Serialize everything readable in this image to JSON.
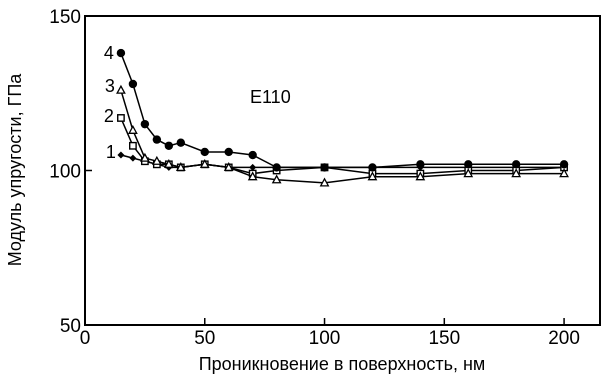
{
  "chart_data": {
    "type": "line",
    "annotation": "E110",
    "xlabel": "Проникновение в поверхность, нм",
    "ylabel": "Модуль упругости, ГПа",
    "xlim": [
      0,
      215
    ],
    "ylim": [
      50,
      150
    ],
    "xticks": [
      0,
      50,
      100,
      150,
      200
    ],
    "yticks": [
      50,
      100,
      150
    ],
    "grid": false,
    "series": [
      {
        "name": "1",
        "marker": "diamond",
        "x": [
          15,
          20,
          25,
          30,
          35,
          40,
          50,
          60,
          70,
          80,
          100,
          120,
          140,
          160,
          180,
          200
        ],
        "y": [
          105,
          104,
          103,
          102,
          101,
          101,
          102,
          101,
          101,
          101,
          101,
          101,
          101,
          101,
          101,
          101
        ]
      },
      {
        "name": "2",
        "marker": "open-square",
        "x": [
          15,
          20,
          25,
          30,
          35,
          40,
          50,
          60,
          70,
          80,
          100,
          120,
          140,
          160,
          180,
          200
        ],
        "y": [
          117,
          108,
          103,
          102,
          102,
          101,
          102,
          101,
          99,
          100,
          101,
          99,
          99,
          100,
          100,
          101
        ]
      },
      {
        "name": "3",
        "marker": "open-triangle",
        "x": [
          15,
          20,
          25,
          30,
          35,
          40,
          50,
          60,
          70,
          80,
          100,
          120,
          140,
          160,
          180,
          200
        ],
        "y": [
          126,
          113,
          104,
          103,
          102,
          101,
          102,
          101,
          98,
          97,
          96,
          98,
          98,
          99,
          99,
          99
        ]
      },
      {
        "name": "4",
        "marker": "filled-circle",
        "x": [
          15,
          20,
          25,
          30,
          35,
          40,
          50,
          60,
          70,
          80,
          100,
          120,
          140,
          160,
          180,
          200
        ],
        "y": [
          138,
          128,
          115,
          110,
          108,
          109,
          106,
          106,
          105,
          101,
          101,
          101,
          102,
          102,
          102,
          102
        ]
      }
    ]
  }
}
